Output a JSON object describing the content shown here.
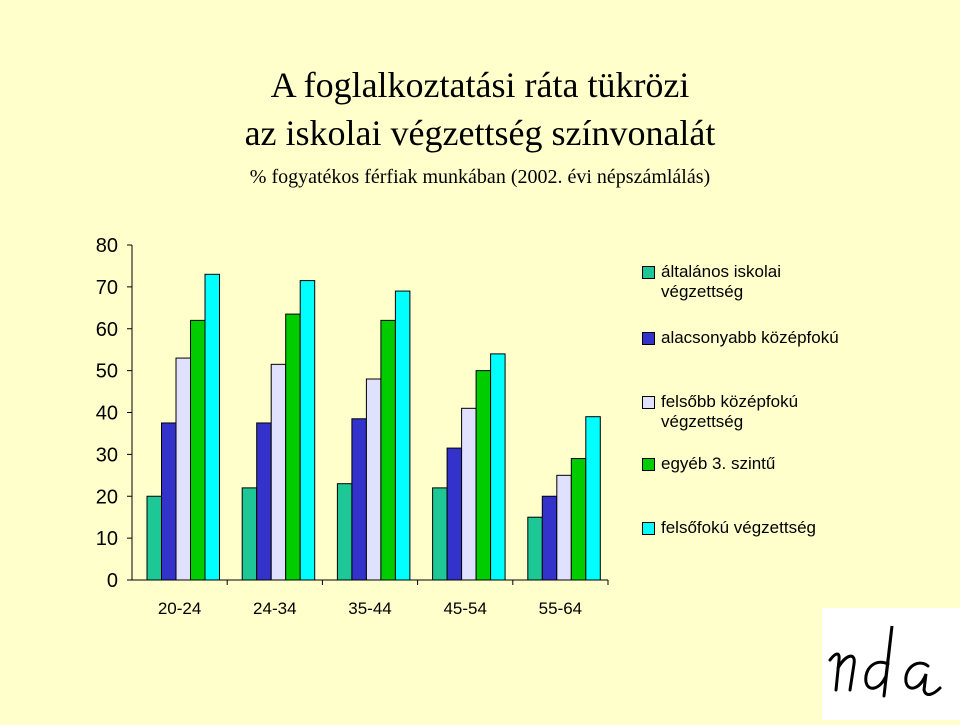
{
  "title_line1": "A foglalkoztatási ráta tükrözi",
  "title_line2": "az iskolai végzettség színvonalát",
  "subtitle": "% fogyatékos férfiak munkában (2002. évi népszámlálás)",
  "logo_text": "nda",
  "chart_data": {
    "type": "bar",
    "categories": [
      "20-24",
      "24-34",
      "35-44",
      "45-54",
      "55-64"
    ],
    "ylim": [
      0,
      80
    ],
    "yticks": [
      0,
      10,
      20,
      30,
      40,
      50,
      60,
      70,
      80
    ],
    "grid": false,
    "legend_position": "right",
    "series": [
      {
        "name": "általános iskolai végzettség",
        "color": "#1ec896",
        "values": [
          20,
          22,
          23,
          22,
          15
        ]
      },
      {
        "name": "alacsonyabb középfokú",
        "color": "#3333cc",
        "values": [
          37.5,
          37.5,
          38.5,
          31.5,
          20
        ]
      },
      {
        "name": "felsőbb középfokú végzettség",
        "color": "#e0e0ff",
        "values": [
          53,
          51.5,
          48,
          41,
          25
        ]
      },
      {
        "name": "egyéb 3. szintű",
        "color": "#00cc00",
        "values": [
          62,
          63.5,
          62,
          50,
          29
        ]
      },
      {
        "name": "felsőfokú végzettség",
        "color": "#00ffff",
        "values": [
          73,
          71.5,
          69,
          54,
          39
        ]
      }
    ]
  }
}
